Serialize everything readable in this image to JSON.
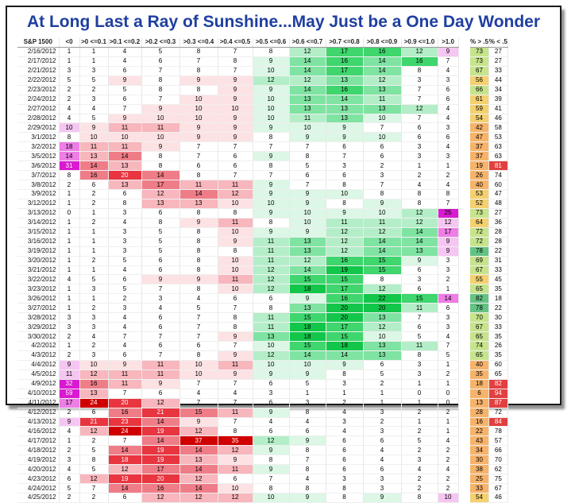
{
  "title": "At Long Last a Ray of Sunshine...May Just be a One Day Wonder",
  "headers": [
    "S&P 1500",
    "<0",
    ">0 <=0.1",
    ">0.1 <=0.2",
    ">0.2 <=0.3",
    ">0.3 <=0.4",
    ">0.4 <=0.5",
    ">0.5 <=0.6",
    ">0.6 <=0.7",
    ">0.7 <=0.8",
    ">0.8 <=0.9",
    ">0.9 <=1.0",
    ">1.0",
    "",
    "% > .5",
    "% < .5"
  ],
  "rows": [
    [
      "2/16/2012",
      "1",
      "1",
      "4",
      "5",
      "8",
      "7",
      "8",
      "12",
      "17",
      "16",
      "12",
      "9",
      "",
      "73",
      "27"
    ],
    [
      "2/17/2012",
      "1",
      "1",
      "4",
      "6",
      "7",
      "8",
      "9",
      "14",
      "16",
      "14",
      "16",
      "7",
      "",
      "73",
      "27"
    ],
    [
      "2/21/2012",
      "3",
      "3",
      "6",
      "7",
      "8",
      "7",
      "10",
      "14",
      "17",
      "14",
      "8",
      "4",
      "",
      "67",
      "33"
    ],
    [
      "2/22/2012",
      "5",
      "5",
      "9",
      "8",
      "9",
      "9",
      "12",
      "12",
      "13",
      "12",
      "3",
      "3",
      "",
      "56",
      "44"
    ],
    [
      "2/23/2012",
      "2",
      "2",
      "5",
      "8",
      "8",
      "9",
      "9",
      "14",
      "16",
      "13",
      "7",
      "6",
      "",
      "66",
      "34"
    ],
    [
      "2/24/2012",
      "2",
      "3",
      "6",
      "7",
      "10",
      "9",
      "10",
      "13",
      "14",
      "11",
      "7",
      "6",
      "",
      "61",
      "39"
    ],
    [
      "2/27/2012",
      "4",
      "4",
      "7",
      "9",
      "10",
      "10",
      "10",
      "13",
      "13",
      "13",
      "12",
      "4",
      "",
      "59",
      "41"
    ],
    [
      "2/28/2012",
      "4",
      "5",
      "9",
      "10",
      "10",
      "9",
      "10",
      "11",
      "13",
      "10",
      "7",
      "4",
      "",
      "54",
      "46"
    ],
    [
      "2/29/2012",
      "10",
      "9",
      "11",
      "11",
      "9",
      "9",
      "9",
      "10",
      "9",
      "7",
      "6",
      "3",
      "",
      "42",
      "58"
    ],
    [
      "3/1/2012",
      "8",
      "10",
      "10",
      "10",
      "9",
      "9",
      "8",
      "9",
      "9",
      "10",
      "6",
      "6",
      "",
      "47",
      "53"
    ],
    [
      "3/2/2012",
      "18",
      "11",
      "11",
      "9",
      "7",
      "7",
      "7",
      "7",
      "6",
      "6",
      "3",
      "4",
      "",
      "37",
      "63"
    ],
    [
      "3/5/2012",
      "14",
      "13",
      "14",
      "8",
      "7",
      "6",
      "9",
      "8",
      "7",
      "6",
      "3",
      "3",
      "",
      "37",
      "63"
    ],
    [
      "3/6/2012",
      "31",
      "14",
      "13",
      "8",
      "6",
      "6",
      "8",
      "5",
      "3",
      "2",
      "1",
      "1",
      "",
      "19",
      "81"
    ],
    [
      "3/7/2012",
      "8",
      "16",
      "20",
      "14",
      "8",
      "7",
      "7",
      "6",
      "6",
      "3",
      "2",
      "2",
      "",
      "26",
      "74"
    ],
    [
      "3/8/2012",
      "2",
      "6",
      "13",
      "17",
      "11",
      "11",
      "9",
      "7",
      "8",
      "7",
      "4",
      "4",
      "",
      "40",
      "60"
    ],
    [
      "3/9/2012",
      "1",
      "2",
      "6",
      "12",
      "14",
      "12",
      "9",
      "9",
      "10",
      "8",
      "8",
      "8",
      "",
      "53",
      "47"
    ],
    [
      "3/12/2012",
      "1",
      "2",
      "8",
      "13",
      "13",
      "10",
      "10",
      "9",
      "8",
      "9",
      "8",
      "7",
      "",
      "52",
      "48"
    ],
    [
      "3/13/2012",
      "0",
      "1",
      "3",
      "6",
      "8",
      "8",
      "9",
      "10",
      "9",
      "10",
      "12",
      "25",
      "",
      "73",
      "27"
    ],
    [
      "3/14/2012",
      "1",
      "2",
      "4",
      "8",
      "9",
      "11",
      "8",
      "10",
      "11",
      "11",
      "12",
      "12",
      "",
      "64",
      "36"
    ],
    [
      "3/15/2012",
      "1",
      "1",
      "3",
      "5",
      "8",
      "10",
      "9",
      "9",
      "12",
      "12",
      "14",
      "17",
      "",
      "72",
      "28"
    ],
    [
      "3/16/2012",
      "1",
      "1",
      "3",
      "5",
      "8",
      "9",
      "11",
      "13",
      "12",
      "14",
      "14",
      "9",
      "",
      "72",
      "28"
    ],
    [
      "3/19/2012",
      "1",
      "1",
      "3",
      "5",
      "8",
      "8",
      "11",
      "13",
      "12",
      "14",
      "13",
      "9",
      "",
      "78",
      "22"
    ],
    [
      "3/20/2012",
      "1",
      "2",
      "5",
      "6",
      "8",
      "10",
      "11",
      "12",
      "16",
      "15",
      "9",
      "3",
      "",
      "69",
      "31"
    ],
    [
      "3/21/2012",
      "1",
      "1",
      "4",
      "6",
      "8",
      "10",
      "12",
      "14",
      "19",
      "15",
      "6",
      "3",
      "",
      "67",
      "33"
    ],
    [
      "3/22/2012",
      "4",
      "5",
      "6",
      "9",
      "9",
      "11",
      "12",
      "15",
      "15",
      "8",
      "3",
      "2",
      "",
      "55",
      "45"
    ],
    [
      "3/23/2012",
      "1",
      "3",
      "5",
      "7",
      "8",
      "10",
      "12",
      "18",
      "17",
      "12",
      "6",
      "1",
      "",
      "65",
      "35"
    ],
    [
      "3/26/2012",
      "1",
      "1",
      "2",
      "3",
      "4",
      "6",
      "6",
      "9",
      "16",
      "22",
      "15",
      "14",
      "",
      "82",
      "18"
    ],
    [
      "3/27/2012",
      "1",
      "2",
      "3",
      "4",
      "5",
      "7",
      "8",
      "13",
      "20",
      "20",
      "11",
      "6",
      "",
      "78",
      "22"
    ],
    [
      "3/28/2012",
      "3",
      "3",
      "4",
      "6",
      "7",
      "8",
      "11",
      "15",
      "20",
      "13",
      "7",
      "3",
      "",
      "70",
      "30"
    ],
    [
      "3/29/2012",
      "3",
      "3",
      "4",
      "6",
      "7",
      "8",
      "11",
      "18",
      "17",
      "12",
      "6",
      "3",
      "",
      "67",
      "33"
    ],
    [
      "3/30/2012",
      "2",
      "4",
      "7",
      "7",
      "7",
      "9",
      "13",
      "18",
      "15",
      "10",
      "5",
      "4",
      "",
      "65",
      "35"
    ],
    [
      "4/2/2012",
      "1",
      "2",
      "4",
      "6",
      "6",
      "7",
      "10",
      "15",
      "18",
      "13",
      "11",
      "7",
      "",
      "74",
      "26"
    ],
    [
      "4/3/2012",
      "2",
      "3",
      "6",
      "7",
      "8",
      "9",
      "12",
      "14",
      "14",
      "13",
      "8",
      "5",
      "",
      "65",
      "35"
    ],
    [
      "4/4/2012",
      "9",
      "10",
      "9",
      "11",
      "10",
      "11",
      "10",
      "10",
      "9",
      "6",
      "3",
      "1",
      "",
      "40",
      "60"
    ],
    [
      "4/5/2012",
      "11",
      "12",
      "11",
      "11",
      "10",
      "9",
      "9",
      "9",
      "8",
      "5",
      "3",
      "2",
      "",
      "35",
      "65"
    ],
    [
      "4/9/2012",
      "32",
      "16",
      "11",
      "9",
      "7",
      "7",
      "6",
      "5",
      "3",
      "2",
      "1",
      "1",
      "",
      "18",
      "82"
    ],
    [
      "4/10/2012",
      "59",
      "13",
      "7",
      "6",
      "4",
      "4",
      "3",
      "1",
      "1",
      "1",
      "0",
      "0",
      "",
      "6",
      "94"
    ],
    [
      "4/11/2012",
      "17",
      "24",
      "20",
      "12",
      "7",
      "7",
      "6",
      "3",
      "2",
      "1",
      "1",
      "0",
      "",
      "13",
      "87"
    ],
    [
      "4/12/2012",
      "2",
      "6",
      "16",
      "21",
      "15",
      "11",
      "9",
      "8",
      "4",
      "3",
      "2",
      "2",
      "",
      "28",
      "72"
    ],
    [
      "4/13/2012",
      "9",
      "21",
      "23",
      "14",
      "9",
      "7",
      "4",
      "4",
      "3",
      "2",
      "1",
      "1",
      "",
      "16",
      "84"
    ],
    [
      "4/16/2012",
      "4",
      "12",
      "24",
      "19",
      "12",
      "8",
      "6",
      "6",
      "4",
      "3",
      "2",
      "1",
      "",
      "22",
      "78"
    ],
    [
      "4/17/2012",
      "1",
      "2",
      "7",
      "14",
      "37",
      "35",
      "12",
      "9",
      "6",
      "6",
      "5",
      "4",
      "",
      "43",
      "57"
    ],
    [
      "4/18/2012",
      "2",
      "5",
      "14",
      "19",
      "14",
      "12",
      "9",
      "8",
      "6",
      "4",
      "2",
      "2",
      "",
      "34",
      "66"
    ],
    [
      "4/19/2012",
      "3",
      "8",
      "18",
      "19",
      "13",
      "9",
      "8",
      "7",
      "6",
      "4",
      "3",
      "2",
      "",
      "30",
      "70"
    ],
    [
      "4/20/2012",
      "4",
      "5",
      "12",
      "17",
      "14",
      "11",
      "9",
      "8",
      "6",
      "6",
      "4",
      "4",
      "",
      "38",
      "62"
    ],
    [
      "4/23/2012",
      "6",
      "12",
      "19",
      "20",
      "12",
      "6",
      "7",
      "4",
      "3",
      "3",
      "2",
      "2",
      "",
      "25",
      "75"
    ],
    [
      "4/24/2012",
      "5",
      "7",
      "14",
      "16",
      "14",
      "10",
      "8",
      "8",
      "8",
      "3",
      "2",
      "2",
      "",
      "33",
      "67"
    ],
    [
      "4/25/2012",
      "2",
      "2",
      "6",
      "12",
      "12",
      "12",
      "10",
      "9",
      "8",
      "9",
      "8",
      "10",
      "",
      "54",
      "46"
    ]
  ],
  "colors": {
    "title": "#1f3fa0",
    "red_scale": [
      "#fde2e4",
      "#f8b6bd",
      "#ef7d88",
      "#e8353f",
      "#d10000"
    ],
    "green_scale": [
      "#dcf7e5",
      "#b4eec8",
      "#7fe3a2",
      "#3ed66d",
      "#12c64a"
    ],
    "magenta_scale": [
      "#f6c6f2",
      "#ee7de6",
      "#d91ad0"
    ],
    "gray_cell": "#a6a6a6",
    "pct_above_scale": [
      "#f7b36a",
      "#f4d06f",
      "#c6e48b",
      "#63c384"
    ],
    "pct_below_red": "#e24040"
  }
}
